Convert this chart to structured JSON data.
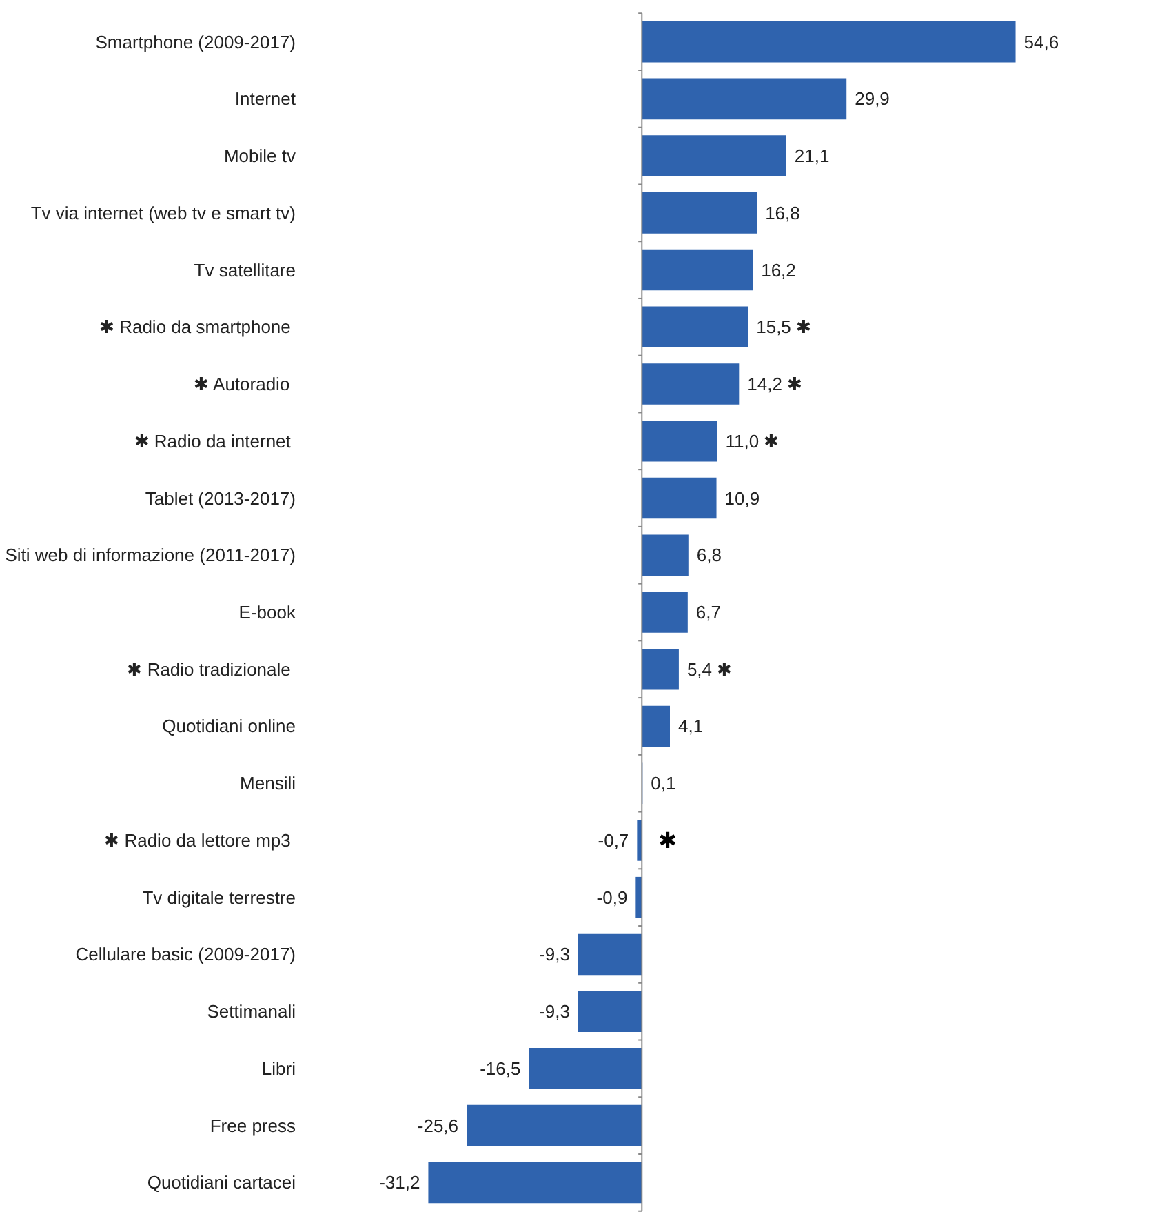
{
  "chart_data": {
    "type": "bar",
    "orientation": "horizontal",
    "color": "#2f63ae",
    "categories": [
      "Smartphone (2009-2017)",
      "Internet",
      "Mobile tv",
      "Tv via internet (web tv e smart tv)",
      "Tv satellitare",
      "✱  Radio da smartphone",
      "✱  Autoradio",
      "✱  Radio da internet",
      "Tablet (2013-2017)",
      "Siti web di informazione (2011-2017)",
      "E-book",
      "✱  Radio tradizionale",
      "Quotidiani online",
      "Mensili",
      "✱  Radio da lettore mp3",
      "Tv digitale terrestre",
      "Cellulare basic (2009-2017)",
      "Settimanali",
      "Libri",
      "Free press",
      "Quotidiani cartacei"
    ],
    "values": [
      54.6,
      29.9,
      21.1,
      16.8,
      16.2,
      15.5,
      14.2,
      11.0,
      10.9,
      6.8,
      6.7,
      5.4,
      4.1,
      0.1,
      -0.7,
      -0.9,
      -9.3,
      -9.3,
      -16.5,
      -25.6,
      -31.2
    ],
    "value_labels": [
      "54,6",
      "29,9",
      "21,1",
      "16,8",
      "16,2",
      "15,5 ✱",
      "14,2 ✱",
      "11,0 ✱",
      "10,9",
      "6,8",
      "6,7",
      "5,4 ✱",
      "4,1",
      "0,1",
      "-0,7",
      "-0,9",
      "-9,3",
      "-9,3",
      "-16,5",
      "-25,6",
      "-31,2"
    ],
    "annotations": [
      {
        "text": "✱",
        "x": -0.7,
        "y": "✱  Radio da lettore mp3"
      }
    ],
    "grid": false
  }
}
